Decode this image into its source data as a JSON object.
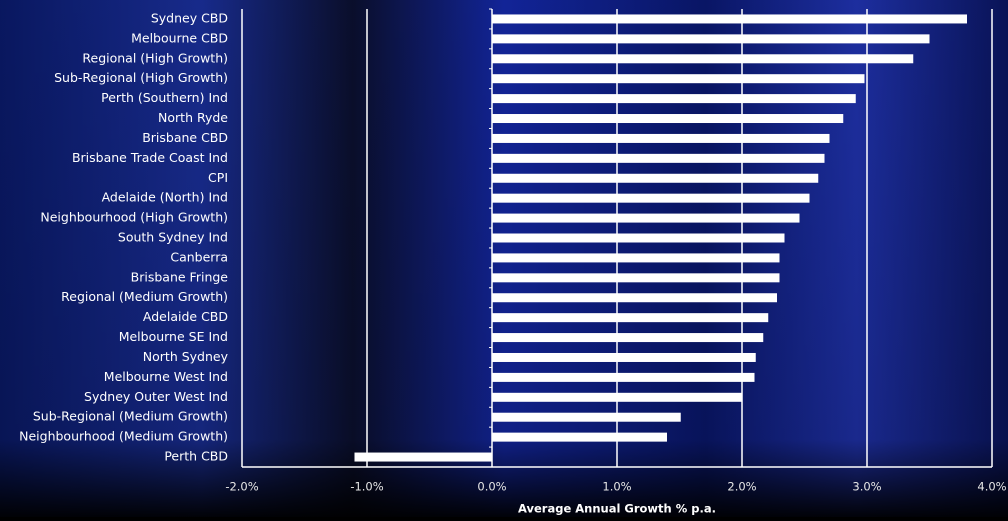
{
  "chart_data": {
    "type": "bar",
    "orientation": "horizontal",
    "x_label": "Average Annual Growth % p.a.",
    "categories": [
      "Sydney CBD",
      "Melbourne CBD",
      "Regional (High Growth)",
      "Sub-Regional (High Growth)",
      "Perth (Southern) Ind",
      "North Ryde",
      "Brisbane CBD",
      "Brisbane Trade Coast Ind",
      "CPI",
      "Adelaide (North) Ind",
      "Neighbourhood (High Growth)",
      "South Sydney Ind",
      "Canberra",
      "Brisbane Fringe",
      "Regional (Medium Growth)",
      "Adelaide CBD",
      "Melbourne SE Ind",
      "North Sydney",
      "Melbourne West Ind",
      "Sydney Outer West Ind",
      "Sub-Regional (Medium Growth)",
      "Neighbourhood (Medium Growth)",
      "Perth CBD"
    ],
    "values": [
      3.8,
      3.5,
      3.37,
      2.98,
      2.91,
      2.81,
      2.7,
      2.66,
      2.61,
      2.54,
      2.46,
      2.34,
      2.3,
      2.3,
      2.28,
      2.21,
      2.17,
      2.11,
      2.1,
      2.0,
      1.51,
      1.4,
      -1.1
    ],
    "color": "#ffffff",
    "xlim": [
      -2,
      4
    ],
    "xticks": [
      {
        "value": -2,
        "label": "-2.0%"
      },
      {
        "value": -1,
        "label": "-1.0%"
      },
      {
        "value": 0,
        "label": "0.0%"
      },
      {
        "value": 1,
        "label": "1.0%"
      },
      {
        "value": 2,
        "label": "2.0%"
      },
      {
        "value": 3,
        "label": "3.0%"
      },
      {
        "value": 4,
        "label": "4.0%"
      }
    ],
    "grid": true
  }
}
